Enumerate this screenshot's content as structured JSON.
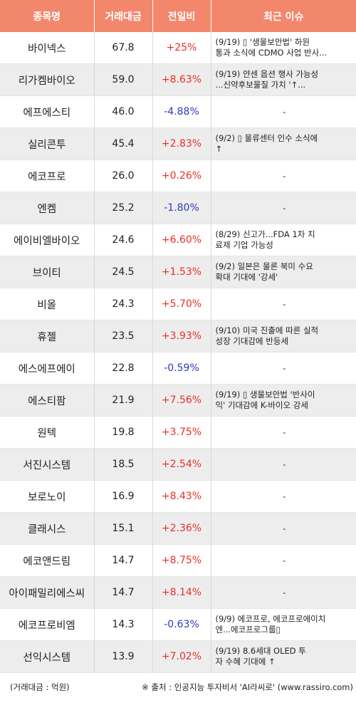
{
  "headers": [
    "종목명",
    "거래대금",
    "전일비",
    "최근 이슈"
  ],
  "rows": [
    {
      "name": "바이넥스",
      "volume": "67.8",
      "change": "+25%",
      "dir": "up",
      "issue": [
        "(9/19) ▯ '생물보안법' 하원",
        "통과 소식에 CDMO 사업 반사..."
      ]
    },
    {
      "name": "리가켐바이오",
      "volume": "59.0",
      "change": "+8.63%",
      "dir": "up",
      "issue": [
        "(9/19) 얀센 옵션 행사 가능성",
        "...신약후보물질 가치 '↑..."
      ]
    },
    {
      "name": "에프에스티",
      "volume": "46.0",
      "change": "-4.88%",
      "dir": "down",
      "issue": [
        "-"
      ]
    },
    {
      "name": "실리콘투",
      "volume": "45.4",
      "change": "+2.83%",
      "dir": "up",
      "issue": [
        "(9/2) ▯ 물류센터 인수 소식에",
        "↑"
      ]
    },
    {
      "name": "에코프로",
      "volume": "26.0",
      "change": "+0.26%",
      "dir": "up",
      "issue": [
        "-"
      ]
    },
    {
      "name": "엔켐",
      "volume": "25.2",
      "change": "-1.80%",
      "dir": "down",
      "issue": [
        "-"
      ]
    },
    {
      "name": "에이비엘바이오",
      "volume": "24.6",
      "change": "+6.60%",
      "dir": "up",
      "issue": [
        "(8/29) 신고가...FDA 1차 치",
        "료제 기업 가능성"
      ]
    },
    {
      "name": "브이티",
      "volume": "24.5",
      "change": "+1.53%",
      "dir": "up",
      "issue": [
        "(9/2) 일본은 물론 북미 수요",
        "확대 기대에 '강세'"
      ]
    },
    {
      "name": "비올",
      "volume": "24.3",
      "change": "+5.70%",
      "dir": "up",
      "issue": [
        "-"
      ]
    },
    {
      "name": "휴젤",
      "volume": "23.5",
      "change": "+3.93%",
      "dir": "up",
      "issue": [
        "(9/10) 미국 진출에 따른 실적",
        "성장 기대감에 반등세"
      ]
    },
    {
      "name": "에스에프에이",
      "volume": "22.8",
      "change": "-0.59%",
      "dir": "down",
      "issue": [
        "-"
      ]
    },
    {
      "name": "에스티팜",
      "volume": "21.9",
      "change": "+7.56%",
      "dir": "up",
      "issue": [
        "(9/19) ▯ 생물보안법 '반사이",
        "익' 기대감에 K-바이오 강세"
      ]
    },
    {
      "name": "원텍",
      "volume": "19.8",
      "change": "+3.75%",
      "dir": "up",
      "issue": [
        "-"
      ]
    },
    {
      "name": "서진시스템",
      "volume": "18.5",
      "change": "+2.54%",
      "dir": "up",
      "issue": [
        "-"
      ]
    },
    {
      "name": "보로노이",
      "volume": "16.9",
      "change": "+8.43%",
      "dir": "up",
      "issue": [
        "-"
      ]
    },
    {
      "name": "클래시스",
      "volume": "15.1",
      "change": "+2.36%",
      "dir": "up",
      "issue": [
        "-"
      ]
    },
    {
      "name": "에코앤드림",
      "volume": "14.7",
      "change": "+8.75%",
      "dir": "up",
      "issue": [
        "-"
      ]
    },
    {
      "name": "아이패밀리에스씨",
      "volume": "14.7",
      "change": "+8.14%",
      "dir": "up",
      "issue": [
        "-"
      ]
    },
    {
      "name": "에코프로비엠",
      "volume": "14.3",
      "change": "-0.63%",
      "dir": "down",
      "issue": [
        "(9/9) 에코프로, 에코프로에이치",
        "엔...에코프로그룹▯"
      ]
    },
    {
      "name": "선익시스템",
      "volume": "13.9",
      "change": "+7.02%",
      "dir": "up",
      "issue": [
        "(9/19) 8.6세대 OLED 투",
        "자 수혜 기대에 ↑"
      ]
    }
  ],
  "footer": {
    "left": "(거래대금 : 억원)",
    "right": "※ 출처 : 인공지능 투자비서 'AI라씨로' (www.rassiro.com)"
  },
  "colors": {
    "header_bg": "#f3876c",
    "up": "#e8302a",
    "down": "#2b3db8",
    "stripe": "#ededed"
  }
}
